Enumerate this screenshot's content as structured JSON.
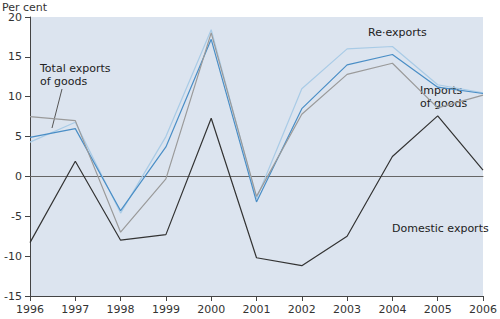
{
  "chart_data": {
    "type": "line",
    "y_label": "Per cent",
    "categories": [
      "1996",
      "1997",
      "1998",
      "1999",
      "2000",
      "2001",
      "2002",
      "2003",
      "2004",
      "2005",
      "2006"
    ],
    "series": [
      {
        "name": "Re·exports",
        "color": "#a9cbe6",
        "values": [
          4.3,
          6.8,
          -4.6,
          5.0,
          18.4,
          -2.8,
          11.0,
          16.0,
          16.3,
          11.5,
          10.5
        ]
      },
      {
        "name": "Total exports of goods",
        "color": "#4a8ec6",
        "values": [
          4.9,
          6.0,
          -4.3,
          3.7,
          17.2,
          -3.2,
          8.5,
          14.0,
          15.3,
          11.2,
          10.4
        ]
      },
      {
        "name": "Imports of goods",
        "color": "#9a9a9a",
        "values": [
          7.5,
          7.0,
          -7.0,
          -0.3,
          18.0,
          -2.5,
          7.8,
          12.8,
          14.2,
          8.6,
          10.2
        ]
      },
      {
        "name": "Domestic exports",
        "color": "#333333",
        "values": [
          -8.3,
          1.9,
          -8.0,
          -7.3,
          7.3,
          -10.2,
          -11.2,
          -7.5,
          2.5,
          7.6,
          0.8
        ]
      }
    ],
    "ylim": [
      -15,
      20
    ],
    "yticks": [
      -15,
      -10,
      -5,
      0,
      5,
      10,
      15,
      20
    ],
    "grid": false,
    "legend": "none"
  }
}
